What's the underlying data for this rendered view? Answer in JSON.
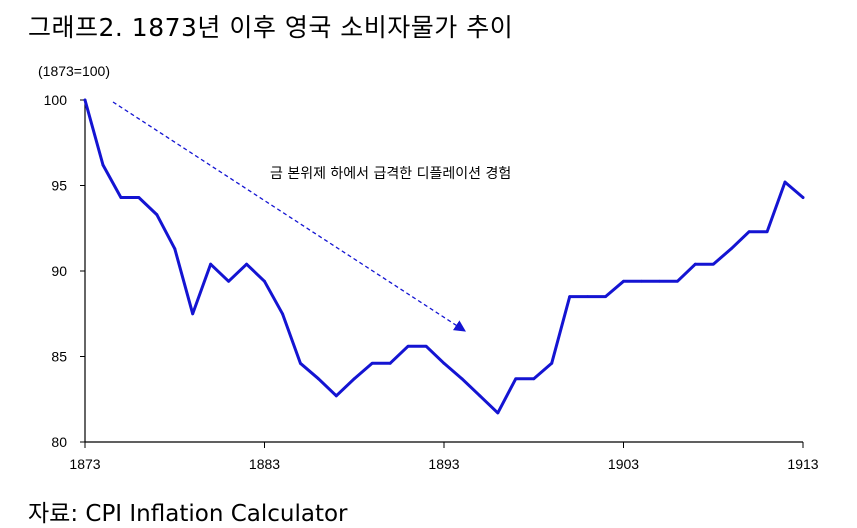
{
  "title": "그래프2. 1873년 이후 영국 소비자물가 추이",
  "source": "자료: CPI Inflation Calculator",
  "chart_data": {
    "type": "line",
    "unit_label": "(1873=100)",
    "annotation": "금 본위제 하에서 급격한 디플레이션 경험",
    "xlim": [
      1873,
      1913
    ],
    "ylim": [
      80,
      100
    ],
    "x_ticks": [
      1873,
      1883,
      1893,
      1903,
      1913
    ],
    "y_ticks": [
      80,
      85,
      90,
      95,
      100
    ],
    "grid": false,
    "line_color": "#1414d2",
    "series": [
      {
        "x": [
          1873,
          1874,
          1875,
          1876,
          1877,
          1878,
          1879,
          1880,
          1881,
          1882,
          1883,
          1884,
          1885,
          1886,
          1887,
          1888,
          1889,
          1890,
          1891,
          1892,
          1893,
          1894,
          1895,
          1896,
          1897,
          1898,
          1899,
          1900,
          1901,
          1902,
          1903,
          1904,
          1905,
          1906,
          1907,
          1908,
          1909,
          1910,
          1911,
          1912,
          1913
        ],
        "values": [
          100,
          96.2,
          94.3,
          94.3,
          93.3,
          91.3,
          87.5,
          90.4,
          89.4,
          90.4,
          89.4,
          87.5,
          84.6,
          83.7,
          82.7,
          83.7,
          84.6,
          84.6,
          85.6,
          85.6,
          84.6,
          83.7,
          82.7,
          81.7,
          83.7,
          83.7,
          84.6,
          88.5,
          88.5,
          88.5,
          89.4,
          89.4,
          89.4,
          89.4,
          90.4,
          90.4,
          91.3,
          92.3,
          92.3,
          95.2,
          94.3
        ]
      }
    ]
  }
}
